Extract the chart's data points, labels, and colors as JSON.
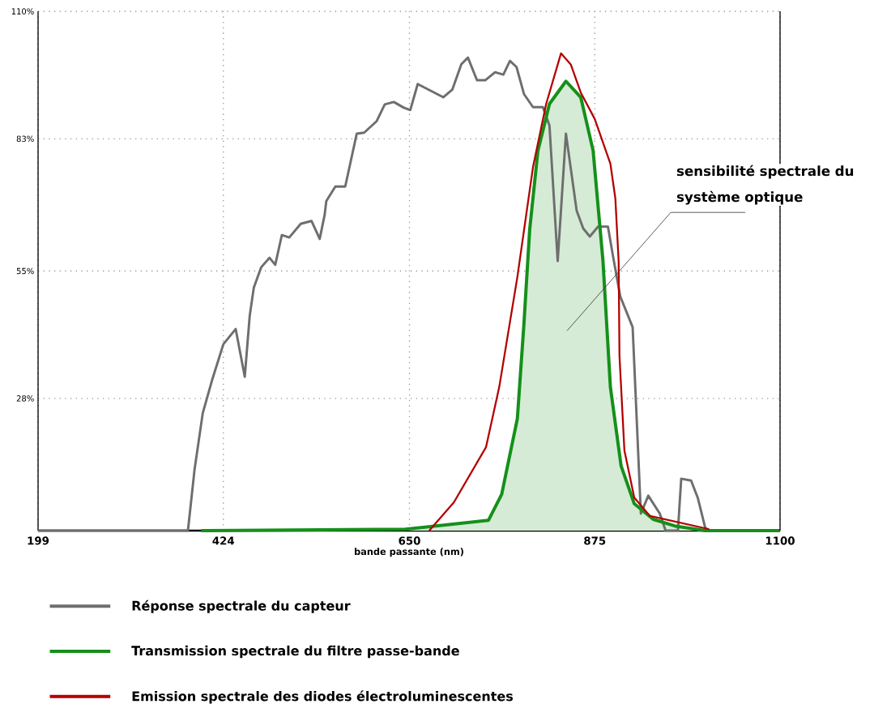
{
  "chart_data": {
    "type": "line",
    "xlabel": "bande passante (nm)",
    "xlim": [
      199,
      1100
    ],
    "ylim": [
      0,
      110
    ],
    "xticks": [
      199,
      424,
      650,
      875,
      1100
    ],
    "yticks": [
      {
        "value": 28,
        "label": "28%"
      },
      {
        "value": 55,
        "label": "55%"
      },
      {
        "value": 83,
        "label": "83%"
      },
      {
        "value": 110,
        "label": "110%"
      }
    ],
    "grid": true,
    "legend": "bottom",
    "annotations": [
      "sensibilité spectrale du système optique"
    ],
    "series": [
      {
        "name": "Réponse spectrale du capteur",
        "color": "#6e6e6e",
        "x": [
          199,
          381,
          389,
          399,
          410,
          424,
          439,
          450,
          456,
          461,
          470,
          480,
          487,
          495,
          504,
          518,
          531,
          541,
          547,
          549,
          560,
          572,
          586,
          595,
          610,
          620,
          631,
          643,
          651,
          660,
          691,
          702,
          713,
          721,
          732,
          742,
          754,
          764,
          772,
          780,
          789,
          800,
          812,
          820,
          830,
          840,
          853,
          861,
          869,
          879,
          891,
          897,
          906,
          921,
          931,
          940,
          954,
          961,
          976,
          980,
          992,
          1000,
          1009,
          1012
        ],
        "values": [
          0,
          0,
          12.9,
          24.9,
          31.7,
          39.5,
          42.7,
          32.6,
          45.5,
          51.5,
          55.8,
          57.8,
          56.3,
          62.6,
          62.1,
          65.0,
          65.6,
          61.8,
          66.9,
          69.8,
          72.9,
          72.9,
          84.1,
          84.3,
          86.7,
          90.3,
          90.8,
          89.6,
          89.1,
          94.6,
          91.8,
          93.4,
          98.8,
          100.2,
          95.4,
          95.4,
          97.1,
          96.6,
          99.5,
          98.2,
          92.5,
          89.7,
          89.7,
          85.8,
          57.1,
          84.1,
          67.8,
          64.0,
          62.3,
          64.4,
          64.4,
          58.3,
          49.6,
          43.1,
          3.6,
          7.4,
          3.6,
          0,
          0,
          11.0,
          10.6,
          7.0,
          0.7,
          0
        ]
      },
      {
        "name": "Transmission spectrale du filtre passe-bande",
        "color": "#15901a",
        "type": "area",
        "x": [
          397,
          645,
          746,
          762,
          781,
          789,
          796,
          806,
          820,
          840,
          858,
          873,
          885,
          894,
          907,
          923,
          946,
          972,
          1009,
          1100
        ],
        "values": [
          0,
          0.3,
          2.2,
          7.7,
          23.7,
          43.8,
          63.8,
          80.5,
          90.4,
          95.2,
          91.8,
          80.5,
          57.1,
          30.4,
          13.7,
          5.7,
          2.4,
          1.0,
          0,
          0
        ]
      },
      {
        "name": "Emission spectrale des diodes électroluminescentes",
        "color": "#b30000",
        "x": [
          674,
          704,
          743,
          759,
          781,
          800,
          816,
          834,
          846,
          858,
          875,
          894,
          900,
          904,
          905,
          911,
          923,
          942,
          1014
        ],
        "values": [
          0,
          6.0,
          17.7,
          30.4,
          53.7,
          77.0,
          90.4,
          101.1,
          98.7,
          92.8,
          87.2,
          77.7,
          70.4,
          57.1,
          37.1,
          17.0,
          7.0,
          3.1,
          0.3
        ]
      }
    ]
  }
}
